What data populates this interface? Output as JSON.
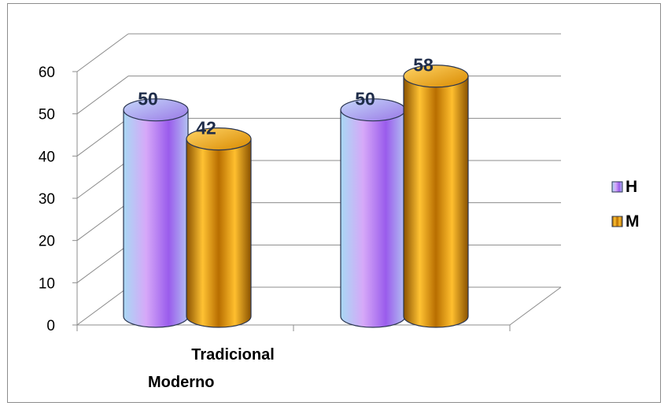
{
  "chart_data": {
    "type": "bar",
    "style": "3d-cylinder",
    "categories": [
      "Tradicional",
      "Moderno"
    ],
    "series": [
      {
        "name": "H",
        "values": [
          50,
          50
        ],
        "color": "#b48cf0"
      },
      {
        "name": "M",
        "values": [
          42,
          58
        ],
        "color": "#e69a0a"
      }
    ],
    "title": "",
    "xlabel": "",
    "ylabel": "",
    "ylim": [
      0,
      60
    ],
    "yticks": [
      0,
      10,
      20,
      30,
      40,
      50,
      60
    ],
    "grid": true,
    "legend": "right"
  },
  "colors": {
    "h_light": "#a8d8f4",
    "h_mid": "#c9a4f6",
    "h_dark": "#8a4fe6",
    "m_light": "#ffc94a",
    "m_mid": "#e69a0a",
    "m_dark": "#7a4600",
    "grid": "#8c8c8c",
    "outline": "#2a3550"
  }
}
